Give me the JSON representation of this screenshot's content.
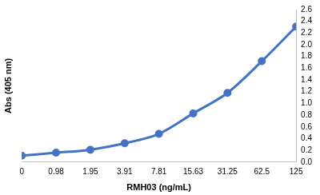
{
  "chart_data": {
    "type": "line",
    "x_label": "RMH03 (ng/mL)",
    "y_label": "Abs (405 nm)",
    "categories": [
      "0",
      "0.98",
      "1.95",
      "3.91",
      "7.81",
      "15.63",
      "31.25",
      "62.5",
      "125"
    ],
    "values": [
      0.11,
      0.16,
      0.21,
      0.32,
      0.48,
      0.83,
      1.18,
      1.72,
      2.31
    ],
    "color": "#4472c4",
    "marker": "circle",
    "ylim": [
      0,
      2.6
    ],
    "yticks": [
      {
        "value": 0,
        "label": "0.0"
      },
      0.2,
      0.4,
      0.6,
      0.8,
      {
        "value": 1,
        "label": "1.0"
      },
      1.2,
      1.4,
      1.6,
      1.8,
      {
        "value": 2,
        "label": "2.0"
      },
      2.2,
      2.4,
      2.6
    ],
    "grid": false
  }
}
